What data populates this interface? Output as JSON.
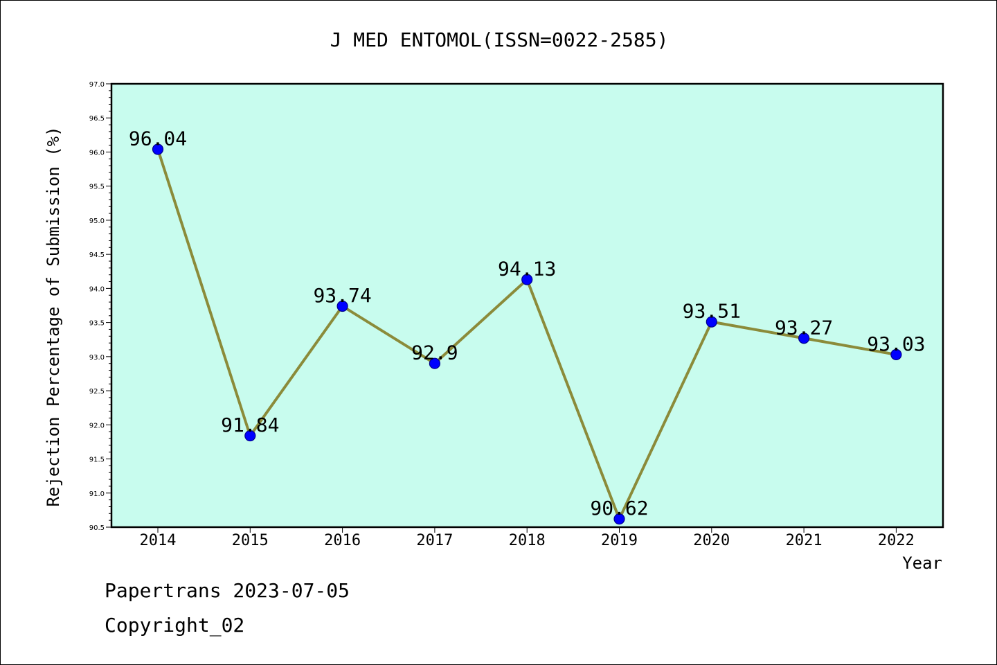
{
  "chart_data": {
    "type": "line",
    "title": "J MED ENTOMOL(ISSN=0022-2585)",
    "xlabel": "Year",
    "ylabel": "Rejection Percentage of Submission (%)",
    "categories": [
      "2014",
      "2015",
      "2016",
      "2017",
      "2018",
      "2019",
      "2020",
      "2021",
      "2022"
    ],
    "values": [
      96.04,
      91.84,
      93.74,
      92.9,
      94.13,
      90.62,
      93.51,
      93.27,
      93.03
    ],
    "data_labels": [
      "96.04",
      "91.84",
      "93.74",
      "92.9",
      "94.13",
      "90.62",
      "93.51",
      "93.27",
      "93.03"
    ],
    "ylim": [
      90.5,
      97.0
    ],
    "yticks": [
      "90.5",
      "91.0",
      "91.5",
      "92.0",
      "92.5",
      "93.0",
      "93.5",
      "94.0",
      "94.5",
      "95.0",
      "95.5",
      "96.0",
      "96.5",
      "97.0"
    ],
    "grid": false,
    "legend": "none",
    "colors": {
      "plot_background": "#c8fcee",
      "line": "#8b8b3a",
      "marker": "#0000ff",
      "marker_edge": "#00008b"
    }
  },
  "footer": {
    "line1": "Papertrans 2023-07-05",
    "line2": "Copyright_02"
  }
}
